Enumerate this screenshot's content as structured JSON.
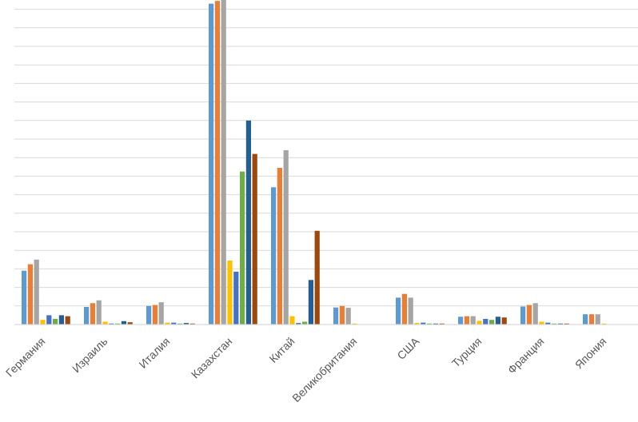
{
  "chart_data": {
    "type": "bar",
    "categories": [
      "Германия",
      "Израиль",
      "Италия",
      "Казахстан",
      "Китай",
      "Великобритания",
      "США",
      "Турция",
      "Франция",
      "Япония"
    ],
    "ylim": [
      0,
      17.5
    ],
    "grid": true,
    "series": [
      {
        "color": "#5B9BD5",
        "values": [
          2.9,
          0.95,
          1.0,
          17.3,
          7.4,
          0.92,
          1.45,
          0.42,
          0.97,
          0.55
        ]
      },
      {
        "color": "#ED7D31",
        "values": [
          3.25,
          1.15,
          1.05,
          17.45,
          8.45,
          1.0,
          1.65,
          0.45,
          1.05,
          0.55
        ]
      },
      {
        "color": "#A5A5A5",
        "values": [
          3.5,
          1.3,
          1.2,
          17.6,
          9.4,
          0.9,
          1.45,
          0.45,
          1.15,
          0.55
        ]
      },
      {
        "color": "#FFC000",
        "values": [
          0.25,
          0.15,
          0.1,
          3.45,
          0.45,
          0.05,
          0.08,
          0.2,
          0.15,
          0.05
        ]
      },
      {
        "color": "#4472C4",
        "values": [
          0.5,
          0.05,
          0.1,
          2.85,
          0.08,
          0.02,
          0.1,
          0.3,
          0.1,
          0.01
        ]
      },
      {
        "color": "#70AD47",
        "values": [
          0.3,
          0.05,
          0.05,
          8.25,
          0.15,
          0.02,
          0.05,
          0.25,
          0.05,
          0.01
        ]
      },
      {
        "color": "#255E91",
        "values": [
          0.5,
          0.18,
          0.08,
          11.0,
          2.4,
          0.02,
          0.05,
          0.42,
          0.05,
          0.01
        ]
      },
      {
        "color": "#9E480E",
        "values": [
          0.45,
          0.12,
          0.05,
          9.2,
          5.05,
          0.02,
          0.05,
          0.38,
          0.05,
          0.01
        ]
      }
    ]
  }
}
